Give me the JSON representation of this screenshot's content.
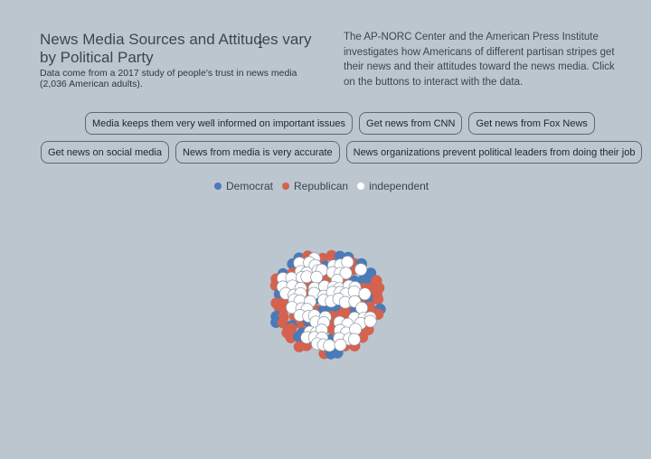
{
  "header": {
    "title": "News Media Sources and Attitudes vary by Political Party",
    "subtitle": "Data come from a 2017 study of people's trust in news media (2,036 American adults).",
    "intro": "The AP-NORC Center and the American Press Institute investigates how Americans of different partisan stripes get their news and their attitudes toward the news media. Click on the buttons to interact with the data."
  },
  "buttons_row1": [
    "Media keeps them very well informed on important issues",
    "Get news from CNN",
    "Get news from Fox News"
  ],
  "buttons_row2": [
    "Get news on social media",
    "News from media is very accurate",
    "News organizations prevent political leaders from doing their job"
  ],
  "legend": [
    {
      "label": "Democrat",
      "color": "#4a7ab8"
    },
    {
      "label": "Republican",
      "color": "#d4624e"
    },
    {
      "label": "independent",
      "color": "#ffffff"
    }
  ],
  "colors": {
    "background": "#bcc6cf",
    "democrat": "#4a7ab8",
    "republican": "#d4624e",
    "independent": "#ffffff"
  }
}
